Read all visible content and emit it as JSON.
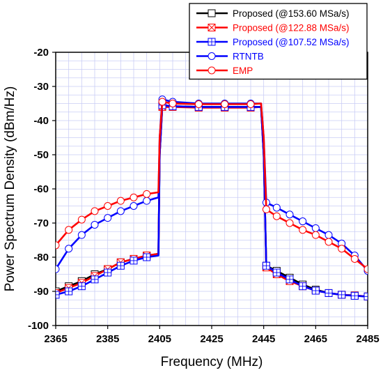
{
  "chart_data": {
    "type": "line",
    "title": "",
    "xlabel": "Frequency (MHz)",
    "ylabel": "Power Spectrum Density (dBm/Hz)",
    "xlim": [
      2365,
      2485
    ],
    "ylim": [
      -100,
      -20
    ],
    "xticks": [
      2365,
      2385,
      2405,
      2425,
      2445,
      2465,
      2485
    ],
    "yticks": [
      -100,
      -90,
      -80,
      -70,
      -60,
      -50,
      -40,
      -30,
      -20
    ],
    "grid": true,
    "legend_position": "top-right",
    "series": [
      {
        "name": "Proposed (@153.60 MSa/s)",
        "color": "#000000",
        "marker": "square",
        "x": [
          2365,
          2370,
          2375,
          2380,
          2385,
          2390,
          2395,
          2400,
          2404.5,
          2405,
          2406,
          2410,
          2420,
          2430,
          2440,
          2444,
          2445,
          2446,
          2450,
          2455,
          2460,
          2465,
          2470,
          2475,
          2480,
          2485
        ],
        "y": [
          -90,
          -88.5,
          -87,
          -85,
          -83.5,
          -81.5,
          -80.5,
          -79.5,
          -79,
          -50,
          -35.5,
          -35.8,
          -36,
          -36,
          -36,
          -36,
          -50,
          -82.5,
          -84,
          -86,
          -88,
          -89.5,
          -90.5,
          -91,
          -91.2,
          -91.5
        ]
      },
      {
        "name": "Proposed (@122.88 MSa/s)",
        "color": "#ff0000",
        "marker": "square-x",
        "x": [
          2365,
          2370,
          2375,
          2380,
          2385,
          2390,
          2395,
          2400,
          2404.5,
          2405,
          2406,
          2410,
          2420,
          2430,
          2440,
          2444,
          2445,
          2446,
          2450,
          2455,
          2460,
          2465,
          2470,
          2475,
          2480,
          2485
        ],
        "y": [
          -90.5,
          -89,
          -87.5,
          -85.5,
          -83.5,
          -81.5,
          -80.5,
          -79.5,
          -79,
          -50,
          -36,
          -36,
          -36.2,
          -36.2,
          -36.2,
          -36,
          -50,
          -83,
          -85,
          -87,
          -88.5,
          -89.8,
          -90.5,
          -91,
          -91.2,
          -91.5
        ]
      },
      {
        "name": "Proposed (@107.52 MSa/s)",
        "color": "#0000ff",
        "marker": "square-plus",
        "x": [
          2365,
          2370,
          2375,
          2380,
          2385,
          2390,
          2395,
          2400,
          2404.5,
          2405,
          2406,
          2410,
          2420,
          2430,
          2440,
          2444,
          2445,
          2446,
          2450,
          2455,
          2460,
          2465,
          2470,
          2475,
          2480,
          2485
        ],
        "y": [
          -91,
          -90,
          -88.5,
          -86.5,
          -84.5,
          -82.5,
          -81,
          -80,
          -79.5,
          -50,
          -35.5,
          -35.8,
          -36,
          -36,
          -36,
          -36,
          -50,
          -82.5,
          -84.5,
          -86.5,
          -88.5,
          -89.8,
          -90.5,
          -91,
          -91.3,
          -91.5
        ]
      },
      {
        "name": "RTNTB",
        "color": "#0000ff",
        "marker": "circle",
        "x": [
          2365,
          2370,
          2375,
          2380,
          2385,
          2390,
          2395,
          2400,
          2404.5,
          2405,
          2406,
          2410,
          2420,
          2430,
          2440,
          2444,
          2445,
          2446,
          2450,
          2455,
          2460,
          2465,
          2470,
          2475,
          2480,
          2485
        ],
        "y": [
          -83.5,
          -77.5,
          -73.5,
          -70.5,
          -68.5,
          -66.5,
          -65,
          -63.5,
          -62.5,
          -45,
          -33.8,
          -34.5,
          -35,
          -35,
          -35,
          -35,
          -45,
          -64,
          -65.5,
          -67.5,
          -69.5,
          -71.5,
          -73.5,
          -76,
          -79.5,
          -84
        ]
      },
      {
        "name": "EMP",
        "color": "#ff0000",
        "marker": "circle",
        "x": [
          2365,
          2370,
          2375,
          2380,
          2385,
          2390,
          2395,
          2400,
          2404.5,
          2405,
          2406,
          2410,
          2420,
          2430,
          2440,
          2444,
          2445,
          2446,
          2450,
          2455,
          2460,
          2465,
          2470,
          2475,
          2480,
          2485
        ],
        "y": [
          -76.5,
          -72,
          -69,
          -66.5,
          -65,
          -63.5,
          -62.5,
          -61.5,
          -61,
          -45,
          -34.5,
          -35,
          -35.2,
          -35.2,
          -35.2,
          -35,
          -45,
          -66,
          -68,
          -70,
          -72,
          -73.5,
          -75.5,
          -77.5,
          -80.5,
          -83.5
        ]
      }
    ]
  }
}
